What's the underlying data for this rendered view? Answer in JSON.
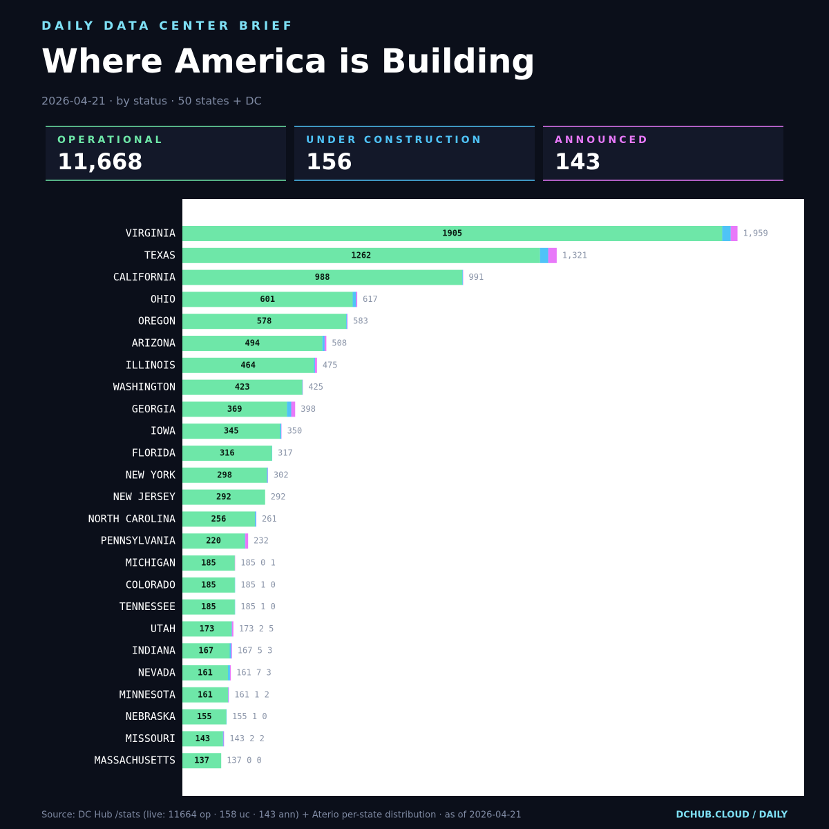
{
  "header": {
    "kicker": "DAILY DATA CENTER BRIEF",
    "title": "Where America is Building",
    "subtitle": "2026-04-21 · by status · 50 states + DC"
  },
  "chart_data": {
    "type": "stacked-bar-horizontal",
    "categories": [
      "VIRGINIA",
      "TEXAS",
      "CALIFORNIA",
      "OHIO",
      "OREGON",
      "ARIZONA",
      "ILLINOIS",
      "WASHINGTON",
      "GEORGIA",
      "IOWA",
      "FLORIDA",
      "NEW YORK",
      "NEW JERSEY",
      "NORTH CAROLINA",
      "PENNSYLVANIA",
      "MICHIGAN",
      "COLORADO",
      "TENNESSEE",
      "UTAH",
      "INDIANA",
      "NEVADA",
      "MINNESOTA",
      "NEBRASKA",
      "MISSOURI",
      "MASSACHUSETTS"
    ],
    "series": [
      {
        "name": "OPERATIONAL",
        "total": "11,668",
        "color": "#6ee7a8",
        "values": [
          1905,
          1262,
          988,
          601,
          578,
          494,
          464,
          423,
          369,
          345,
          316,
          298,
          292,
          256,
          220,
          185,
          185,
          185,
          173,
          167,
          161,
          161,
          155,
          143,
          137
        ]
      },
      {
        "name": "UNDER CONSTRUCTION",
        "total": "156",
        "color": "#4fc3f7",
        "values": [
          30,
          29,
          2,
          12,
          3,
          8,
          4,
          1,
          15,
          4,
          1,
          3,
          0,
          4,
          2,
          0,
          1,
          1,
          2,
          5,
          7,
          1,
          1,
          2,
          0
        ]
      },
      {
        "name": "ANNOUNCED",
        "total": "143",
        "color": "#e879f9",
        "values": [
          24,
          30,
          1,
          4,
          2,
          6,
          7,
          1,
          14,
          1,
          0,
          1,
          0,
          1,
          10,
          1,
          0,
          0,
          5,
          3,
          3,
          2,
          0,
          2,
          0
        ]
      }
    ],
    "end_labels": [
      "1,959",
      "1,321",
      "991",
      "617",
      "583",
      "508",
      "475",
      "425",
      "398",
      "350",
      "317",
      "302",
      "292",
      "261",
      "232",
      "185 0 1",
      "185 1 0",
      "185 1 0",
      "173 2 5",
      "167 5 3",
      "161 7 3",
      "161 1 2",
      "155 1 0",
      "143 2 2",
      "137 0 0"
    ]
  },
  "footer": {
    "source": "Source: DC Hub /stats (live: 11664 op · 158 uc · 143 ann) + Aterio per-state distribution · as of 2026-04-21",
    "brand": "DCHUB.CLOUD / DAILY"
  }
}
